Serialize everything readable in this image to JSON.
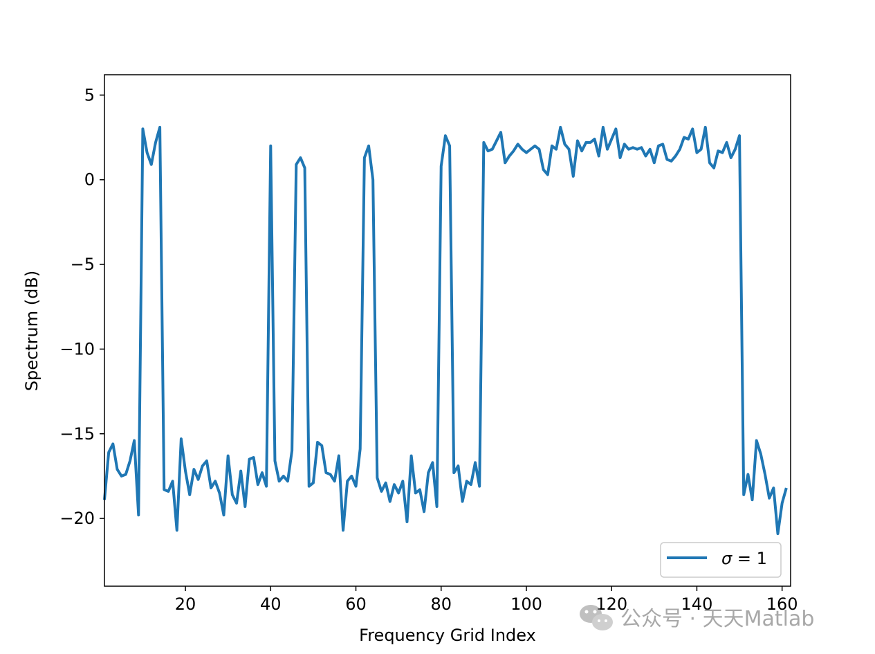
{
  "chart_data": {
    "type": "line",
    "xlabel": "Frequency Grid Index",
    "ylabel": "Spectrum (dB)",
    "xlim": [
      1,
      162
    ],
    "ylim": [
      -24,
      6.2
    ],
    "xticks": [
      20,
      40,
      60,
      80,
      100,
      120,
      140,
      160
    ],
    "yticks": [
      5,
      0,
      -5,
      -10,
      -15,
      -20
    ],
    "xtick_labels": [
      "20",
      "40",
      "60",
      "80",
      "100",
      "120",
      "140",
      "160"
    ],
    "ytick_labels": [
      "5",
      "0",
      "−5",
      "−10",
      "−15",
      "−20"
    ],
    "legend": {
      "position": "lower-right",
      "prefix": "σ",
      "suffix": " = 1"
    },
    "grid": false,
    "series": [
      {
        "name": "σ = 1",
        "color": "#1f77b4",
        "x": [
          1,
          2,
          3,
          4,
          5,
          6,
          7,
          8,
          9,
          10,
          11,
          12,
          13,
          14,
          15,
          16,
          17,
          18,
          19,
          20,
          21,
          22,
          23,
          24,
          25,
          26,
          27,
          28,
          29,
          30,
          31,
          32,
          33,
          34,
          35,
          36,
          37,
          38,
          39,
          40,
          41,
          42,
          43,
          44,
          45,
          46,
          47,
          48,
          49,
          50,
          51,
          52,
          53,
          54,
          55,
          56,
          57,
          58,
          59,
          60,
          61,
          62,
          63,
          64,
          65,
          66,
          67,
          68,
          69,
          70,
          71,
          72,
          73,
          74,
          75,
          76,
          77,
          78,
          79,
          80,
          81,
          82,
          83,
          84,
          85,
          86,
          87,
          88,
          89,
          90,
          91,
          92,
          93,
          94,
          95,
          96,
          97,
          98,
          99,
          100,
          101,
          102,
          103,
          104,
          105,
          106,
          107,
          108,
          109,
          110,
          111,
          112,
          113,
          114,
          115,
          116,
          117,
          118,
          119,
          120,
          121,
          122,
          123,
          124,
          125,
          126,
          127,
          128,
          129,
          130,
          131,
          132,
          133,
          134,
          135,
          136,
          137,
          138,
          139,
          140,
          141,
          142,
          143,
          144,
          145,
          146,
          147,
          148,
          149,
          150,
          151,
          152,
          153,
          154,
          155,
          156,
          157,
          158,
          159,
          160,
          161
        ],
        "y": [
          -18.9,
          -16.1,
          -15.6,
          -17.1,
          -17.5,
          -17.4,
          -16.6,
          -15.4,
          -19.8,
          3.0,
          1.6,
          0.9,
          2.2,
          3.1,
          -18.3,
          -18.4,
          -17.8,
          -20.7,
          -15.3,
          -17.2,
          -18.6,
          -17.1,
          -17.7,
          -16.9,
          -16.6,
          -18.2,
          -17.8,
          -18.5,
          -19.8,
          -16.3,
          -18.6,
          -19.1,
          -17.2,
          -19.3,
          -16.5,
          -16.4,
          -18.0,
          -17.3,
          -18.1,
          2.0,
          -16.6,
          -17.8,
          -17.5,
          -17.8,
          -16.0,
          0.9,
          1.3,
          0.7,
          -18.1,
          -17.9,
          -15.5,
          -15.7,
          -17.3,
          -17.4,
          -17.8,
          -16.3,
          -20.7,
          -17.8,
          -17.5,
          -18.1,
          -15.9,
          1.3,
          2.0,
          0.0,
          -17.6,
          -18.4,
          -17.9,
          -19.0,
          -18.0,
          -18.5,
          -17.8,
          -20.2,
          -16.3,
          -18.5,
          -18.3,
          -19.6,
          -17.3,
          -16.7,
          -19.3,
          0.8,
          2.6,
          2.0,
          -17.3,
          -16.9,
          -19.0,
          -17.8,
          -18.0,
          -16.7,
          -18.1,
          2.2,
          1.7,
          1.8,
          2.3,
          2.8,
          1.0,
          1.4,
          1.7,
          2.1,
          1.8,
          1.6,
          1.8,
          2.0,
          1.8,
          0.6,
          0.3,
          2.0,
          1.8,
          3.1,
          2.1,
          1.8,
          0.2,
          2.3,
          1.7,
          2.2,
          2.2,
          2.4,
          1.4,
          3.1,
          1.8,
          2.4,
          3.0,
          1.3,
          2.1,
          1.8,
          1.9,
          1.8,
          1.9,
          1.4,
          1.8,
          1.0,
          2.0,
          2.1,
          1.2,
          1.1,
          1.4,
          1.8,
          2.5,
          2.4,
          3.0,
          1.6,
          1.8,
          3.1,
          1.0,
          0.7,
          1.7,
          1.6,
          2.2,
          1.3,
          1.8,
          2.6,
          -18.6,
          -17.4,
          -18.9,
          -15.4,
          -16.2,
          -17.4,
          -18.8,
          -18.2,
          -20.9,
          -19.1,
          -18.2
        ]
      }
    ]
  },
  "watermark": {
    "text": "公众号 · 天天Matlab",
    "icon": "wechat-icon"
  }
}
